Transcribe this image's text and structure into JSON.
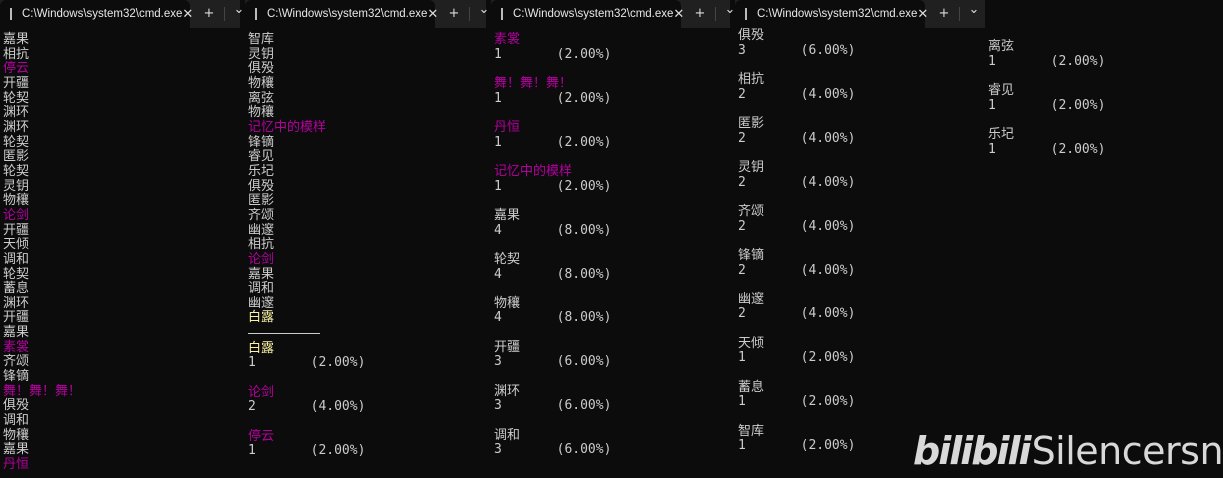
{
  "colors": {
    "text": "#cccccc",
    "magenta": "#b4009e",
    "yellow": "#f9f1a5",
    "background": "#0c0c0c"
  },
  "windows": [
    {
      "tab_title": "C:\\Windows\\system32\\cmd.exe",
      "new_tab": "+",
      "dropdown": "⌄",
      "close": "✕",
      "lines": [
        {
          "t": "嘉果"
        },
        {
          "t": "相抗"
        },
        {
          "t": "停云",
          "c": "magenta"
        },
        {
          "t": "开疆"
        },
        {
          "t": "轮契"
        },
        {
          "t": "渊环"
        },
        {
          "t": "渊环"
        },
        {
          "t": "轮契"
        },
        {
          "t": "匿影"
        },
        {
          "t": "轮契"
        },
        {
          "t": "灵钥"
        },
        {
          "t": "物穰"
        },
        {
          "t": "论剑",
          "c": "magenta"
        },
        {
          "t": "开疆"
        },
        {
          "t": "天倾"
        },
        {
          "t": "调和"
        },
        {
          "t": "轮契"
        },
        {
          "t": "蓄息"
        },
        {
          "t": "渊环"
        },
        {
          "t": "开疆"
        },
        {
          "t": "嘉果"
        },
        {
          "t": "素裳",
          "c": "magenta"
        },
        {
          "t": "齐颂"
        },
        {
          "t": "锋镝"
        },
        {
          "t": "舞！舞！舞！",
          "c": "magenta"
        },
        {
          "t": "俱殁"
        },
        {
          "t": "调和"
        },
        {
          "t": "物穰"
        },
        {
          "t": "嘉果"
        },
        {
          "t": "丹恒",
          "c": "magenta"
        }
      ]
    },
    {
      "tab_title": "C:\\Windows\\system32\\cmd.exe",
      "new_tab": "+",
      "dropdown": "⌄",
      "close": "✕",
      "lines": [
        {
          "t": "智库"
        },
        {
          "t": "灵钥"
        },
        {
          "t": "俱殁"
        },
        {
          "t": "物穰"
        },
        {
          "t": "离弦"
        },
        {
          "t": "物穰"
        },
        {
          "t": "记忆中的模样",
          "c": "magenta"
        },
        {
          "t": "锋镝"
        },
        {
          "t": "睿见"
        },
        {
          "t": "乐圮"
        },
        {
          "t": "俱殁"
        },
        {
          "t": "匿影"
        },
        {
          "t": "齐颂"
        },
        {
          "t": "幽邃"
        },
        {
          "t": "相抗"
        },
        {
          "t": "论剑",
          "c": "magenta"
        },
        {
          "t": "嘉果"
        },
        {
          "t": "调和"
        },
        {
          "t": "幽邃"
        },
        {
          "t": "白露",
          "c": "yellow"
        }
      ],
      "stats": [
        {
          "name": "白露",
          "c": "yellow",
          "count": "1",
          "percent": "(2.00%)"
        },
        {
          "name": "论剑",
          "c": "magenta",
          "count": "2",
          "percent": "(4.00%)"
        },
        {
          "name": "停云",
          "c": "magenta",
          "count": "1",
          "percent": "(2.00%)"
        }
      ]
    },
    {
      "tab_title": "C:\\Windows\\system32\\cmd.exe",
      "new_tab": "+",
      "dropdown": "⌄",
      "close": "✕",
      "stats": [
        {
          "name": "素裳",
          "c": "magenta",
          "count": "1",
          "percent": "(2.00%)"
        },
        {
          "name": "舞！舞！舞！",
          "c": "magenta",
          "count": "1",
          "percent": "(2.00%)"
        },
        {
          "name": "丹恒",
          "c": "magenta",
          "count": "1",
          "percent": "(2.00%)"
        },
        {
          "name": "记忆中的模样",
          "c": "magenta",
          "count": "1",
          "percent": "(2.00%)"
        },
        {
          "name": "嘉果",
          "count": "4",
          "percent": "(8.00%)"
        },
        {
          "name": "轮契",
          "count": "4",
          "percent": "(8.00%)"
        },
        {
          "name": "物穰",
          "count": "4",
          "percent": "(8.00%)"
        },
        {
          "name": "开疆",
          "count": "3",
          "percent": "(6.00%)"
        },
        {
          "name": "渊环",
          "count": "3",
          "percent": "(6.00%)"
        },
        {
          "name": "调和",
          "count": "3",
          "percent": "(6.00%)"
        }
      ]
    },
    {
      "tab_title": "C:\\Windows\\system32\\cmd.exe",
      "new_tab": "+",
      "dropdown": "⌄",
      "close": "✕",
      "stats": [
        {
          "name": "俱殁",
          "count": "3",
          "percent": "(6.00%)"
        },
        {
          "name": "相抗",
          "count": "2",
          "percent": "(4.00%)"
        },
        {
          "name": "匿影",
          "count": "2",
          "percent": "(4.00%)"
        },
        {
          "name": "灵钥",
          "count": "2",
          "percent": "(4.00%)"
        },
        {
          "name": "齐颂",
          "count": "2",
          "percent": "(4.00%)"
        },
        {
          "name": "锋镝",
          "count": "2",
          "percent": "(4.00%)"
        },
        {
          "name": "幽邃",
          "count": "2",
          "percent": "(4.00%)"
        },
        {
          "name": "天倾",
          "count": "1",
          "percent": "(2.00%)"
        },
        {
          "name": "蓄息",
          "count": "1",
          "percent": "(2.00%)"
        },
        {
          "name": "智库",
          "count": "1",
          "percent": "(2.00%)"
        }
      ]
    },
    {
      "stats": [
        {
          "name": "离弦",
          "count": "1",
          "percent": "(2.00%)"
        },
        {
          "name": "睿见",
          "count": "1",
          "percent": "(2.00%)"
        },
        {
          "name": "乐圮",
          "count": "1",
          "percent": "(2.00%)"
        }
      ]
    }
  ],
  "watermark": {
    "logo": "bilibili",
    "user": "Silencersn"
  }
}
